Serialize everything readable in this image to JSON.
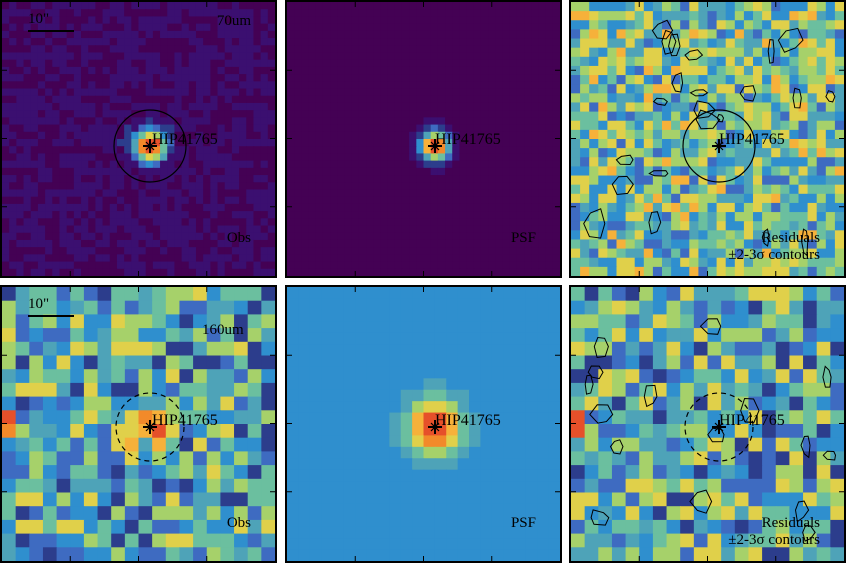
{
  "source_name": "HIP41765",
  "scale_bar_label": "10\"",
  "rows": [
    {
      "band": "70um",
      "aperture_style": "solid"
    },
    {
      "band": "160um",
      "aperture_style": "dashed"
    }
  ],
  "panels": {
    "obs": "Obs",
    "psf": "PSF",
    "residuals_line1": "Residuals",
    "residuals_line2": "±2-3σ contours"
  },
  "colormap": [
    "#440154",
    "#3b0f70",
    "#2c3d8c",
    "#3e6bc1",
    "#2f8fce",
    "#4ea3b8",
    "#6bbf9f",
    "#a6d16a",
    "#e0d04a",
    "#f6b13a",
    "#f28a2a",
    "#e6502a"
  ]
}
